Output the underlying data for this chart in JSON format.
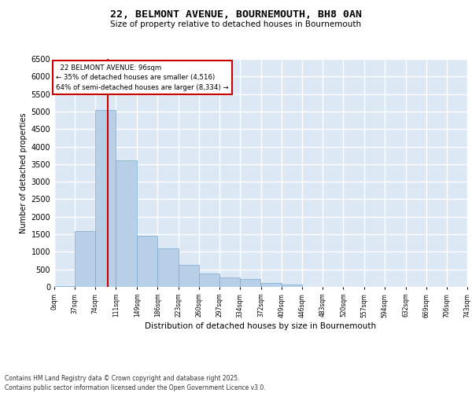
{
  "title": "22, BELMONT AVENUE, BOURNEMOUTH, BH8 0AN",
  "subtitle": "Size of property relative to detached houses in Bournemouth",
  "xlabel": "Distribution of detached houses by size in Bournemouth",
  "ylabel": "Number of detached properties",
  "property_size": 96,
  "property_label": "22 BELMONT AVENUE: 96sqm",
  "pct_smaller": 35,
  "pct_larger": 64,
  "count_smaller": 4516,
  "count_larger": 8334,
  "footnote1": "Contains HM Land Registry data © Crown copyright and database right 2025.",
  "footnote2": "Contains public sector information licensed under the Open Government Licence v3.0.",
  "bar_color": "#b8cfe8",
  "bar_edge_color": "#7aaad0",
  "vline_color": "#cc0000",
  "annotation_box_color": "#cc0000",
  "bg_color": "#dde8f5",
  "grid_color": "#ffffff",
  "bin_edges": [
    0,
    37,
    74,
    111,
    149,
    186,
    223,
    260,
    297,
    334,
    372,
    409,
    446,
    483,
    520,
    557,
    594,
    632,
    669,
    706,
    743
  ],
  "bin_labels": [
    "0sqm",
    "37sqm",
    "74sqm",
    "111sqm",
    "149sqm",
    "186sqm",
    "223sqm",
    "260sqm",
    "297sqm",
    "334sqm",
    "372sqm",
    "409sqm",
    "446sqm",
    "483sqm",
    "520sqm",
    "557sqm",
    "594sqm",
    "632sqm",
    "669sqm",
    "706sqm",
    "743sqm"
  ],
  "bar_heights": [
    30,
    1600,
    5050,
    3600,
    1450,
    1100,
    620,
    380,
    270,
    220,
    110,
    60,
    0,
    0,
    0,
    0,
    0,
    0,
    0,
    0
  ],
  "ylim": [
    0,
    6500
  ],
  "yticks": [
    0,
    500,
    1000,
    1500,
    2000,
    2500,
    3000,
    3500,
    4000,
    4500,
    5000,
    5500,
    6000,
    6500
  ]
}
